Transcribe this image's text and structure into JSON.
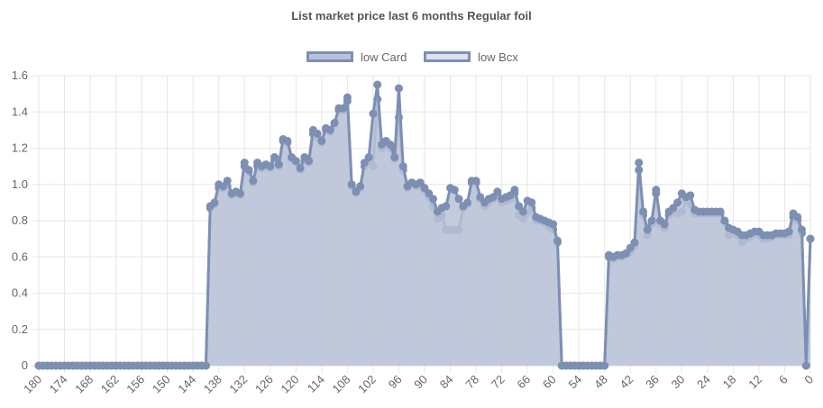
{
  "chart_data": {
    "type": "area",
    "title": "List market price last 6 months Regular foil",
    "xlabel": "",
    "ylabel": "",
    "x_reversed": true,
    "x": [
      180,
      179,
      178,
      177,
      176,
      175,
      174,
      173,
      172,
      171,
      170,
      169,
      168,
      167,
      166,
      165,
      164,
      163,
      162,
      161,
      160,
      159,
      158,
      157,
      156,
      155,
      154,
      153,
      152,
      151,
      150,
      149,
      148,
      147,
      146,
      145,
      144,
      143,
      142,
      141,
      140,
      139,
      138,
      137,
      136,
      135,
      134,
      133,
      132,
      131,
      130,
      129,
      128,
      127,
      126,
      125,
      124,
      123,
      122,
      121,
      120,
      119,
      118,
      117,
      116,
      115,
      114,
      113,
      112,
      111,
      110,
      109,
      108,
      107,
      106,
      105,
      104,
      103,
      102,
      101,
      100,
      99,
      98,
      97,
      96,
      95,
      94,
      93,
      92,
      91,
      90,
      89,
      88,
      87,
      86,
      85,
      84,
      83,
      82,
      81,
      80,
      79,
      78,
      77,
      76,
      75,
      74,
      73,
      72,
      71,
      70,
      69,
      68,
      67,
      66,
      65,
      64,
      63,
      62,
      61,
      60,
      59,
      58,
      57,
      56,
      55,
      54,
      53,
      52,
      51,
      50,
      49,
      48,
      47,
      46,
      45,
      44,
      43,
      42,
      41,
      40,
      39,
      38,
      37,
      36,
      35,
      34,
      33,
      32,
      31,
      30,
      29,
      28,
      27,
      26,
      25,
      24,
      23,
      22,
      21,
      20,
      19,
      18,
      17,
      16,
      15,
      14,
      13,
      12,
      11,
      10,
      9,
      8,
      7,
      6,
      5,
      4,
      3,
      2,
      1,
      0
    ],
    "x_ticks": [
      180,
      174,
      168,
      162,
      156,
      150,
      144,
      138,
      132,
      126,
      120,
      114,
      108,
      102,
      96,
      90,
      84,
      78,
      72,
      66,
      60,
      54,
      48,
      42,
      36,
      30,
      24,
      18,
      12,
      6,
      0
    ],
    "y_ticks": [
      "0",
      "0.2",
      "0.4",
      "0.6",
      "0.8",
      "1.0",
      "1.2",
      "1.4",
      "1.6"
    ],
    "ylim": [
      0,
      1.6
    ],
    "grid": true,
    "legend_position": "top",
    "series": [
      {
        "name": "low Card",
        "fill": "#b8c2d6",
        "stroke": "#7d8fb3",
        "values": [
          0,
          0,
          0,
          0,
          0,
          0,
          0,
          0,
          0,
          0,
          0,
          0,
          0,
          0,
          0,
          0,
          0,
          0,
          0,
          0,
          0,
          0,
          0,
          0,
          0,
          0,
          0,
          0,
          0,
          0,
          0,
          0,
          0,
          0,
          0,
          0,
          0,
          0,
          0,
          0,
          0.88,
          0.9,
          1.0,
          0.99,
          1.02,
          0.95,
          0.96,
          0.95,
          1.12,
          1.08,
          1.02,
          1.12,
          1.1,
          1.11,
          1.1,
          1.15,
          1.11,
          1.25,
          1.24,
          1.15,
          1.13,
          1.09,
          1.15,
          1.13,
          1.3,
          1.28,
          1.24,
          1.31,
          1.3,
          1.34,
          1.42,
          1.42,
          1.48,
          1.0,
          0.96,
          0.99,
          1.12,
          1.15,
          1.39,
          1.55,
          1.22,
          1.24,
          1.22,
          1.15,
          1.53,
          1.1,
          0.99,
          1.01,
          1.0,
          1.01,
          0.98,
          0.95,
          0.92,
          0.85,
          0.87,
          0.88,
          0.98,
          0.97,
          0.92,
          0.88,
          0.9,
          1.02,
          1.02,
          0.93,
          0.9,
          0.92,
          0.93,
          0.96,
          0.92,
          0.93,
          0.94,
          0.97,
          0.88,
          0.85,
          0.91,
          0.9,
          0.82,
          0.81,
          0.8,
          0.79,
          0.78,
          0.69,
          0,
          0,
          0,
          0,
          0,
          0,
          0,
          0,
          0,
          0,
          0,
          0.61,
          0.6,
          0.61,
          0.61,
          0.62,
          0.65,
          0.68,
          1.12,
          0.85,
          0.75,
          0.8,
          0.97,
          0.8,
          0.78,
          0.85,
          0.87,
          0.9,
          0.95,
          0.93,
          0.94,
          0.86,
          0.85,
          0.85,
          0.85,
          0.85,
          0.85,
          0.85,
          0.8,
          0.76,
          0.75,
          0.74,
          0.72,
          0.72,
          0.73,
          0.74,
          0.74,
          0.72,
          0.72,
          0.72,
          0.73,
          0.73,
          0.73,
          0.74,
          0.84,
          0.82,
          0.75,
          0,
          0.7
        ]
      },
      {
        "name": "low Bcx",
        "fill": "#dde2ec",
        "stroke": "#7d8fb3",
        "values": [
          0,
          0,
          0,
          0,
          0,
          0,
          0,
          0,
          0,
          0,
          0,
          0,
          0,
          0,
          0,
          0,
          0,
          0,
          0,
          0,
          0,
          0,
          0,
          0,
          0,
          0,
          0,
          0,
          0,
          0,
          0,
          0,
          0,
          0,
          0,
          0,
          0,
          0,
          0,
          0,
          0.87,
          0.89,
          0.98,
          0.98,
          0.99,
          0.94,
          0.95,
          0.94,
          1.1,
          1.07,
          1.01,
          1.1,
          1.09,
          1.1,
          1.09,
          1.13,
          1.1,
          1.24,
          1.23,
          1.14,
          1.12,
          1.08,
          1.13,
          1.12,
          1.28,
          1.26,
          1.23,
          1.3,
          1.29,
          1.33,
          1.41,
          1.41,
          1.46,
          0.99,
          0.95,
          0.98,
          1.1,
          1.13,
          1.1,
          1.47,
          1.2,
          1.22,
          1.2,
          1.14,
          1.37,
          1.08,
          0.98,
          1.0,
          0.99,
          1.0,
          0.97,
          0.93,
          0.88,
          0.81,
          0.83,
          0.75,
          0.75,
          0.75,
          0.75,
          0.87,
          0.89,
          1.01,
          1.01,
          0.92,
          0.88,
          0.9,
          0.92,
          0.94,
          0.9,
          0.91,
          0.92,
          0.95,
          0.83,
          0.81,
          0.84,
          0.87,
          0.8,
          0.8,
          0.79,
          0.77,
          0.75,
          0.68,
          0,
          0,
          0,
          0,
          0,
          0,
          0,
          0,
          0,
          0,
          0,
          0.6,
          0.59,
          0.6,
          0.6,
          0.61,
          0.63,
          0.66,
          1.08,
          0.83,
          0.72,
          0.78,
          0.95,
          0.78,
          0.76,
          0.83,
          0.85,
          0.84,
          0.85,
          0.91,
          0.89,
          0.84,
          0.84,
          0.84,
          0.84,
          0.84,
          0.84,
          0.84,
          0.79,
          0.72,
          0.73,
          0.72,
          0.68,
          0.7,
          0.71,
          0.73,
          0.72,
          0.7,
          0.7,
          0.71,
          0.72,
          0.72,
          0.72,
          0.72,
          0.82,
          0.8,
          0.73,
          0,
          0.7
        ]
      }
    ]
  }
}
